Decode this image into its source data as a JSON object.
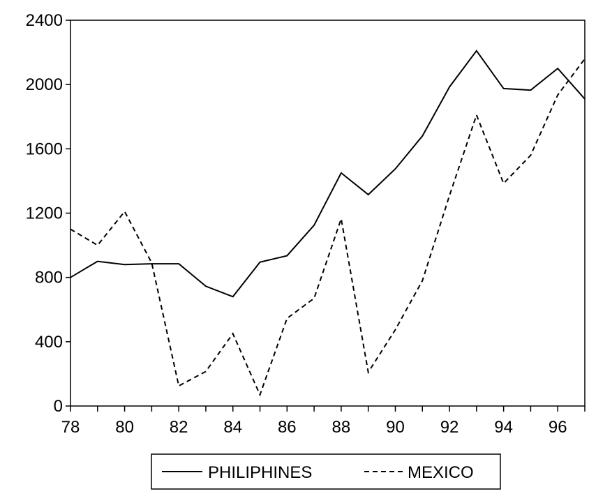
{
  "chart_data": {
    "type": "line",
    "title": "",
    "xlabel": "",
    "ylabel": "",
    "x": [
      "78",
      "79",
      "80",
      "81",
      "82",
      "83",
      "84",
      "85",
      "86",
      "87",
      "88",
      "89",
      "90",
      "91",
      "92",
      "93",
      "94",
      "95",
      "96",
      "97"
    ],
    "xtick_labels": [
      "78",
      "80",
      "82",
      "84",
      "86",
      "88",
      "90",
      "92",
      "94",
      "96"
    ],
    "ylim": [
      0,
      2400
    ],
    "yticks": [
      0,
      400,
      800,
      1200,
      1600,
      2000,
      2400
    ],
    "ytick_labels": [
      "0",
      "400",
      "800",
      "1200",
      "1600",
      "2000",
      "2400"
    ],
    "grid": false,
    "legend_position": "bottom",
    "series": [
      {
        "name": "PHILIPHINES",
        "style": "solid",
        "color": "#000000",
        "values": [
          800,
          900,
          880,
          885,
          885,
          745,
          680,
          895,
          935,
          1125,
          1450,
          1315,
          1475,
          1680,
          1985,
          2210,
          1975,
          1965,
          2100,
          1910
        ]
      },
      {
        "name": "MEXICO",
        "style": "dashed",
        "color": "#000000",
        "values": [
          1100,
          1000,
          1210,
          890,
          125,
          215,
          450,
          70,
          545,
          670,
          1165,
          210,
          475,
          780,
          1310,
          1810,
          1385,
          1560,
          1935,
          2160
        ]
      }
    ]
  }
}
